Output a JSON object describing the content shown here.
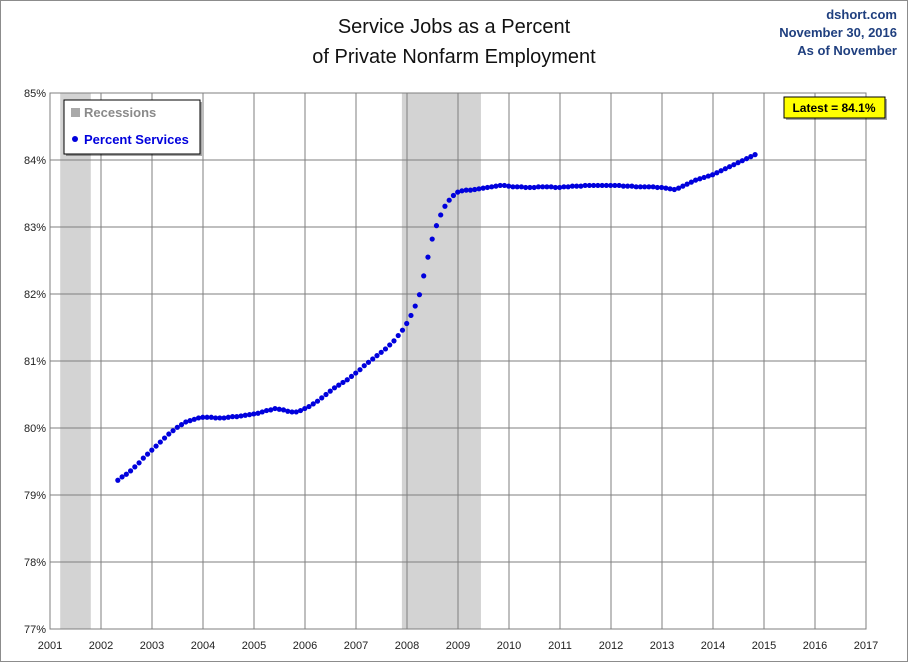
{
  "header": {
    "title_line1": "Service Jobs as a Percent",
    "title_line2": "of Private Nonfarm Employment",
    "source": "dshort.com",
    "date": "November 30, 2016",
    "as_of": "As of November"
  },
  "legend": {
    "recessions_label": "Recessions",
    "series_label": "Percent Services"
  },
  "annotation": {
    "latest_label": "Latest = 84.1%"
  },
  "colors": {
    "series": "#0000dd",
    "recession": "#d3d3d3",
    "grid": "#7f7f7f",
    "latest_box": "#ffff00"
  },
  "chart_data": {
    "type": "scatter",
    "xlim": [
      2001,
      2017
    ],
    "ylim": [
      77,
      85
    ],
    "x_ticks": [
      "2001",
      "2002",
      "2003",
      "2004",
      "2005",
      "2006",
      "2007",
      "2008",
      "2009",
      "2010",
      "2011",
      "2012",
      "2013",
      "2014",
      "2015",
      "2016",
      "2017"
    ],
    "y_ticks": [
      "77%",
      "78%",
      "79%",
      "80%",
      "81%",
      "82%",
      "83%",
      "84%",
      "85%"
    ],
    "grid": true,
    "legend_position": "top-left",
    "recessions": [
      [
        2001.2,
        2001.8
      ],
      [
        2007.9,
        2009.45
      ]
    ],
    "series": [
      {
        "name": "Percent Services",
        "start_year": 2002.33,
        "step_years": 0.0833,
        "values": [
          79.22,
          79.27,
          79.31,
          79.36,
          79.42,
          79.48,
          79.55,
          79.61,
          79.67,
          79.73,
          79.79,
          79.85,
          79.91,
          79.96,
          80.01,
          80.05,
          80.09,
          80.11,
          80.13,
          80.15,
          80.16,
          80.16,
          80.16,
          80.15,
          80.15,
          80.15,
          80.16,
          80.17,
          80.17,
          80.18,
          80.19,
          80.2,
          80.21,
          80.22,
          80.24,
          80.26,
          80.27,
          80.29,
          80.28,
          80.27,
          80.25,
          80.24,
          80.24,
          80.26,
          80.29,
          80.32,
          80.36,
          80.4,
          80.45,
          80.5,
          80.55,
          80.6,
          80.64,
          80.68,
          80.72,
          80.77,
          80.82,
          80.87,
          80.93,
          80.98,
          81.03,
          81.08,
          81.13,
          81.18,
          81.24,
          81.3,
          81.38,
          81.46,
          81.56,
          81.68,
          81.82,
          81.99,
          82.27,
          82.55,
          82.82,
          83.02,
          83.18,
          83.31,
          83.4,
          83.47,
          83.52,
          83.54,
          83.55,
          83.55,
          83.56,
          83.57,
          83.58,
          83.59,
          83.6,
          83.61,
          83.62,
          83.62,
          83.61,
          83.6,
          83.6,
          83.6,
          83.59,
          83.59,
          83.59,
          83.6,
          83.6,
          83.6,
          83.6,
          83.59,
          83.59,
          83.6,
          83.6,
          83.61,
          83.61,
          83.61,
          83.62,
          83.62,
          83.62,
          83.62,
          83.62,
          83.62,
          83.62,
          83.62,
          83.62,
          83.61,
          83.61,
          83.61,
          83.6,
          83.6,
          83.6,
          83.6,
          83.6,
          83.59,
          83.59,
          83.58,
          83.57,
          83.56,
          83.58,
          83.61,
          83.64,
          83.67,
          83.7,
          83.72,
          83.74,
          83.76,
          83.78,
          83.81,
          83.84,
          83.87,
          83.9,
          83.93,
          83.96,
          83.99,
          84.02,
          84.05,
          84.08
        ]
      }
    ]
  }
}
